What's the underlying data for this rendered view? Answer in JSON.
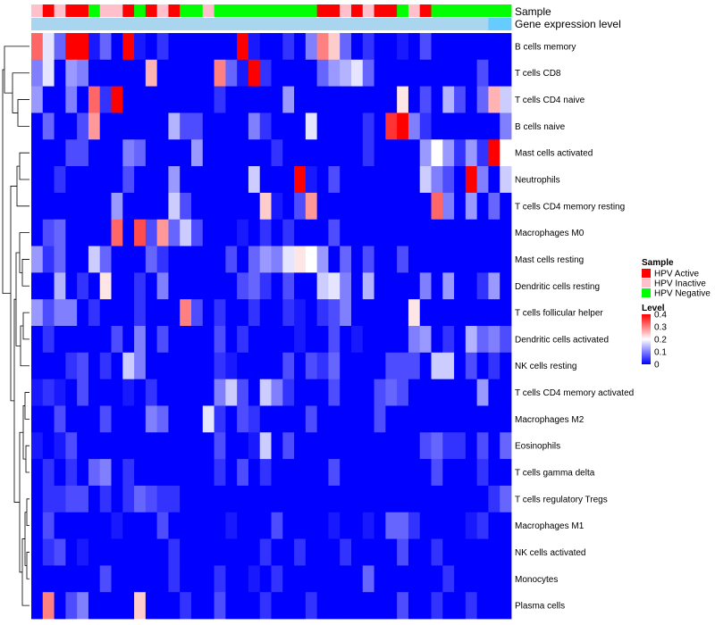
{
  "chart_data": {
    "type": "heatmap",
    "title": "",
    "xlabel": "",
    "ylabel": "",
    "rows": [
      "B cells memory",
      "T cells CD8",
      "T cells CD4 naive",
      "B cells naive",
      "Mast cells activated",
      "Neutrophils",
      "T cells CD4 memory resting",
      "Macrophages M0",
      "Mast cells resting",
      "Dendritic cells resting",
      "T cells follicular helper",
      "Dendritic cells activated",
      "NK cells resting",
      "T cells CD4 memory activated",
      "Macrophages M2",
      "Eosinophils",
      "T cells gamma delta",
      "T cells regulatory  Tregs",
      "Macrophages M1",
      "NK cells activated",
      "Monocytes",
      "Plasma cells"
    ],
    "annotation_tracks": [
      {
        "name": "Sample"
      },
      {
        "name": "Gene expression level"
      }
    ],
    "sample_groups": [
      "Inactive",
      "Active",
      "Inactive",
      "Active",
      "Active",
      "Negative",
      "Inactive",
      "Inactive",
      "Active",
      "Negative",
      "Active",
      "Inactive",
      "Active",
      "Negative",
      "Negative",
      "Inactive",
      "Negative",
      "Negative",
      "Negative",
      "Negative",
      "Negative",
      "Negative",
      "Negative",
      "Negative",
      "Negative",
      "Active",
      "Active",
      "Inactive",
      "Active",
      "Inactive",
      "Active",
      "Active",
      "Negative",
      "Inactive",
      "Active",
      "Negative",
      "Negative",
      "Negative",
      "Negative",
      "Negative",
      "Negative",
      "Negative"
    ],
    "legend_sample": {
      "title": "Sample",
      "entries": [
        {
          "label": "HPV Active",
          "color": "#ff0000"
        },
        {
          "label": "HPV Inactive",
          "color": "#ffc0cb"
        },
        {
          "label": "HPV Negative",
          "color": "#00ff00"
        }
      ]
    },
    "legend_level": {
      "title": "Level",
      "ticks": [
        0.4,
        0.3,
        0.2,
        0.1,
        0
      ],
      "tick_labels": [
        "0.4",
        "0.3",
        "0.2",
        "0.1",
        "0"
      ],
      "range": [
        0,
        0.4
      ],
      "colors": [
        "#0000ff",
        "#ffffff",
        "#ff0000"
      ]
    },
    "colors": {
      "low": "#0000ff",
      "mid": "#ffffff",
      "high": "#ff0000",
      "annotation_expression": "#a9d6ee",
      "annotation_expression_right": "#66ccff"
    },
    "value_range": [
      0,
      0.4
    ],
    "values": [
      [
        0.32,
        0.18,
        0.08,
        0.4,
        0.4,
        0.02,
        0.08,
        0.0,
        0.4,
        0.02,
        0.0,
        0.04,
        0.0,
        0.0,
        0.0,
        0.0,
        0.0,
        0.0,
        0.4,
        0.02,
        0.0,
        0.0,
        0.04,
        0.0,
        0.1,
        0.3,
        0.24,
        0.08,
        0.0,
        0.04,
        0.0,
        0.0,
        0.02,
        0.0,
        0.06,
        0.0,
        0.0,
        0.0,
        0.0,
        0.0,
        0.0,
        0.0
      ],
      [
        0.1,
        0.18,
        0.0,
        0.12,
        0.1,
        0.0,
        0.0,
        0.0,
        0.0,
        0.0,
        0.26,
        0.0,
        0.0,
        0.0,
        0.0,
        0.0,
        0.3,
        0.08,
        0.02,
        0.4,
        0.04,
        0.0,
        0.0,
        0.0,
        0.0,
        0.08,
        0.12,
        0.14,
        0.18,
        0.08,
        0.0,
        0.0,
        0.0,
        0.0,
        0.0,
        0.0,
        0.0,
        0.0,
        0.0,
        0.06,
        0.0,
        0.0
      ],
      [
        0.12,
        0.0,
        0.0,
        0.1,
        0.0,
        0.32,
        0.04,
        0.4,
        0.0,
        0.0,
        0.0,
        0.0,
        0.0,
        0.0,
        0.0,
        0.0,
        0.04,
        0.0,
        0.0,
        0.0,
        0.0,
        0.0,
        0.12,
        0.0,
        0.0,
        0.0,
        0.0,
        0.0,
        0.0,
        0.0,
        0.0,
        0.0,
        0.22,
        0.0,
        0.06,
        0.0,
        0.14,
        0.06,
        0.0,
        0.08,
        0.26,
        0.16
      ],
      [
        0.0,
        0.08,
        0.0,
        0.0,
        0.06,
        0.28,
        0.0,
        0.0,
        0.0,
        0.0,
        0.0,
        0.0,
        0.14,
        0.06,
        0.06,
        0.0,
        0.0,
        0.0,
        0.0,
        0.1,
        0.04,
        0.0,
        0.0,
        0.0,
        0.18,
        0.0,
        0.0,
        0.0,
        0.0,
        0.04,
        0.0,
        0.36,
        0.4,
        0.1,
        0.04,
        0.0,
        0.0,
        0.0,
        0.0,
        0.0,
        0.0,
        0.1
      ],
      [
        0.0,
        0.0,
        0.0,
        0.06,
        0.06,
        0.0,
        0.0,
        0.0,
        0.1,
        0.08,
        0.0,
        0.0,
        0.0,
        0.0,
        0.12,
        0.0,
        0.0,
        0.0,
        0.0,
        0.0,
        0.0,
        0.04,
        0.0,
        0.0,
        0.0,
        0.0,
        0.0,
        0.0,
        0.0,
        0.04,
        0.0,
        0.0,
        0.0,
        0.0,
        0.12,
        0.2,
        0.12,
        0.04,
        0.12,
        0.04,
        0.4,
        0.2
      ],
      [
        0.0,
        0.0,
        0.04,
        0.0,
        0.0,
        0.0,
        0.0,
        0.0,
        0.06,
        0.0,
        0.0,
        0.0,
        0.12,
        0.0,
        0.0,
        0.0,
        0.0,
        0.0,
        0.0,
        0.16,
        0.0,
        0.0,
        0.0,
        0.4,
        0.02,
        0.0,
        0.06,
        0.0,
        0.0,
        0.0,
        0.0,
        0.0,
        0.0,
        0.0,
        0.16,
        0.1,
        0.06,
        0.0,
        0.4,
        0.1,
        0.0,
        0.16
      ],
      [
        0.0,
        0.0,
        0.0,
        0.0,
        0.0,
        0.0,
        0.0,
        0.12,
        0.0,
        0.0,
        0.0,
        0.0,
        0.16,
        0.06,
        0.0,
        0.0,
        0.0,
        0.0,
        0.0,
        0.0,
        0.24,
        0.02,
        0.0,
        0.06,
        0.28,
        0.0,
        0.0,
        0.0,
        0.0,
        0.0,
        0.0,
        0.0,
        0.0,
        0.0,
        0.0,
        0.32,
        0.1,
        0.0,
        0.12,
        0.0,
        0.08,
        0.0
      ],
      [
        0.0,
        0.06,
        0.08,
        0.0,
        0.0,
        0.0,
        0.0,
        0.32,
        0.0,
        0.34,
        0.06,
        0.28,
        0.08,
        0.16,
        0.06,
        0.0,
        0.0,
        0.0,
        0.02,
        0.0,
        0.04,
        0.0,
        0.04,
        0.0,
        0.0,
        0.0,
        0.06,
        0.0,
        0.0,
        0.0,
        0.0,
        0.0,
        0.0,
        0.0,
        0.0,
        0.0,
        0.0,
        0.0,
        0.0,
        0.0,
        0.0,
        0.0
      ],
      [
        0.12,
        0.04,
        0.08,
        0.0,
        0.0,
        0.16,
        0.08,
        0.0,
        0.0,
        0.0,
        0.08,
        0.04,
        0.0,
        0.0,
        0.0,
        0.0,
        0.0,
        0.06,
        0.0,
        0.08,
        0.12,
        0.1,
        0.18,
        0.22,
        0.2,
        0.12,
        0.0,
        0.08,
        0.0,
        0.06,
        0.0,
        0.0,
        0.06,
        0.0,
        0.0,
        0.0,
        0.0,
        0.0,
        0.0,
        0.0,
        0.0,
        0.0
      ],
      [
        0.0,
        0.0,
        0.14,
        0.0,
        0.04,
        0.0,
        0.22,
        0.0,
        0.0,
        0.04,
        0.0,
        0.1,
        0.0,
        0.0,
        0.0,
        0.0,
        0.0,
        0.0,
        0.06,
        0.08,
        0.04,
        0.0,
        0.06,
        0.0,
        0.0,
        0.16,
        0.18,
        0.1,
        0.0,
        0.14,
        0.0,
        0.0,
        0.0,
        0.0,
        0.1,
        0.0,
        0.12,
        0.0,
        0.0,
        0.04,
        0.12,
        0.0
      ],
      [
        0.12,
        0.06,
        0.1,
        0.1,
        0.0,
        0.04,
        0.0,
        0.0,
        0.0,
        0.04,
        0.0,
        0.0,
        0.0,
        0.3,
        0.06,
        0.0,
        0.04,
        0.0,
        0.0,
        0.04,
        0.0,
        0.0,
        0.04,
        0.02,
        0.0,
        0.04,
        0.06,
        0.1,
        0.0,
        0.0,
        0.0,
        0.0,
        0.0,
        0.22,
        0.0,
        0.0,
        0.0,
        0.0,
        0.0,
        0.0,
        0.0,
        0.0
      ],
      [
        0.0,
        0.04,
        0.0,
        0.0,
        0.0,
        0.0,
        0.0,
        0.06,
        0.0,
        0.1,
        0.0,
        0.06,
        0.0,
        0.0,
        0.0,
        0.0,
        0.06,
        0.0,
        0.04,
        0.0,
        0.0,
        0.0,
        0.0,
        0.02,
        0.0,
        0.0,
        0.06,
        0.0,
        0.02,
        0.0,
        0.0,
        0.0,
        0.0,
        0.1,
        0.12,
        0.0,
        0.04,
        0.0,
        0.14,
        0.08,
        0.1,
        0.06
      ],
      [
        0.0,
        0.0,
        0.0,
        0.04,
        0.06,
        0.0,
        0.04,
        0.0,
        0.16,
        0.1,
        0.0,
        0.0,
        0.0,
        0.0,
        0.0,
        0.0,
        0.04,
        0.02,
        0.0,
        0.0,
        0.0,
        0.0,
        0.06,
        0.0,
        0.06,
        0.04,
        0.08,
        0.0,
        0.0,
        0.0,
        0.0,
        0.06,
        0.06,
        0.06,
        0.0,
        0.16,
        0.16,
        0.0,
        0.06,
        0.0,
        0.04,
        0.0
      ],
      [
        0.02,
        0.04,
        0.02,
        0.0,
        0.06,
        0.0,
        0.0,
        0.0,
        0.02,
        0.0,
        0.04,
        0.0,
        0.0,
        0.0,
        0.0,
        0.0,
        0.1,
        0.16,
        0.06,
        0.0,
        0.16,
        0.1,
        0.04,
        0.0,
        0.0,
        0.0,
        0.06,
        0.0,
        0.0,
        0.0,
        0.06,
        0.08,
        0.06,
        0.0,
        0.0,
        0.0,
        0.0,
        0.0,
        0.0,
        0.12,
        0.0,
        0.0
      ],
      [
        0.0,
        0.0,
        0.06,
        0.0,
        0.0,
        0.0,
        0.06,
        0.0,
        0.0,
        0.0,
        0.1,
        0.08,
        0.0,
        0.0,
        0.0,
        0.18,
        0.04,
        0.0,
        0.06,
        0.04,
        0.0,
        0.0,
        0.0,
        0.0,
        0.06,
        0.0,
        0.0,
        0.0,
        0.0,
        0.0,
        0.06,
        0.0,
        0.0,
        0.0,
        0.0,
        0.0,
        0.0,
        0.0,
        0.0,
        0.0,
        0.0,
        0.0
      ],
      [
        0.02,
        0.0,
        0.02,
        0.06,
        0.0,
        0.0,
        0.0,
        0.0,
        0.0,
        0.0,
        0.0,
        0.0,
        0.0,
        0.0,
        0.0,
        0.0,
        0.06,
        0.0,
        0.0,
        0.02,
        0.16,
        0.0,
        0.06,
        0.0,
        0.0,
        0.0,
        0.0,
        0.0,
        0.0,
        0.0,
        0.0,
        0.0,
        0.0,
        0.0,
        0.06,
        0.08,
        0.04,
        0.04,
        0.0,
        0.06,
        0.0,
        0.08
      ],
      [
        0.0,
        0.04,
        0.0,
        0.04,
        0.0,
        0.08,
        0.1,
        0.0,
        0.04,
        0.0,
        0.0,
        0.0,
        0.0,
        0.0,
        0.0,
        0.0,
        0.04,
        0.0,
        0.06,
        0.0,
        0.04,
        0.0,
        0.0,
        0.0,
        0.0,
        0.0,
        0.06,
        0.0,
        0.0,
        0.0,
        0.0,
        0.0,
        0.0,
        0.0,
        0.0,
        0.06,
        0.0,
        0.0,
        0.0,
        0.04,
        0.0,
        0.0
      ],
      [
        0.0,
        0.04,
        0.04,
        0.06,
        0.06,
        0.0,
        0.04,
        0.0,
        0.04,
        0.08,
        0.06,
        0.04,
        0.04,
        0.0,
        0.0,
        0.0,
        0.0,
        0.0,
        0.0,
        0.0,
        0.0,
        0.0,
        0.0,
        0.0,
        0.0,
        0.0,
        0.0,
        0.0,
        0.0,
        0.0,
        0.0,
        0.0,
        0.0,
        0.0,
        0.0,
        0.0,
        0.0,
        0.0,
        0.0,
        0.0,
        0.04,
        0.08
      ],
      [
        0.0,
        0.06,
        0.0,
        0.0,
        0.0,
        0.0,
        0.0,
        0.02,
        0.0,
        0.0,
        0.0,
        0.06,
        0.0,
        0.0,
        0.0,
        0.0,
        0.0,
        0.02,
        0.0,
        0.0,
        0.0,
        0.06,
        0.0,
        0.0,
        0.0,
        0.0,
        0.02,
        0.0,
        0.0,
        0.02,
        0.0,
        0.08,
        0.08,
        0.04,
        0.0,
        0.0,
        0.0,
        0.0,
        0.02,
        0.04,
        0.0,
        0.0
      ],
      [
        0.0,
        0.04,
        0.06,
        0.0,
        0.02,
        0.0,
        0.0,
        0.0,
        0.0,
        0.0,
        0.0,
        0.0,
        0.04,
        0.0,
        0.0,
        0.0,
        0.0,
        0.0,
        0.0,
        0.0,
        0.04,
        0.0,
        0.0,
        0.04,
        0.0,
        0.0,
        0.0,
        0.04,
        0.0,
        0.0,
        0.0,
        0.0,
        0.06,
        0.0,
        0.0,
        0.04,
        0.0,
        0.0,
        0.0,
        0.0,
        0.0,
        0.0
      ],
      [
        0.0,
        0.0,
        0.0,
        0.0,
        0.0,
        0.0,
        0.06,
        0.0,
        0.0,
        0.0,
        0.0,
        0.0,
        0.04,
        0.0,
        0.0,
        0.0,
        0.04,
        0.0,
        0.0,
        0.02,
        0.0,
        0.04,
        0.0,
        0.0,
        0.0,
        0.0,
        0.0,
        0.0,
        0.0,
        0.08,
        0.0,
        0.0,
        0.0,
        0.0,
        0.0,
        0.0,
        0.04,
        0.0,
        0.0,
        0.0,
        0.0,
        0.0
      ],
      [
        0.0,
        0.3,
        0.0,
        0.06,
        0.1,
        0.0,
        0.0,
        0.0,
        0.0,
        0.24,
        0.0,
        0.0,
        0.0,
        0.04,
        0.0,
        0.0,
        0.06,
        0.0,
        0.0,
        0.0,
        0.04,
        0.0,
        0.0,
        0.0,
        0.04,
        0.0,
        0.0,
        0.0,
        0.0,
        0.0,
        0.0,
        0.0,
        0.06,
        0.0,
        0.0,
        0.04,
        0.0,
        0.0,
        0.04,
        0.0,
        0.0,
        0.0
      ]
    ]
  }
}
